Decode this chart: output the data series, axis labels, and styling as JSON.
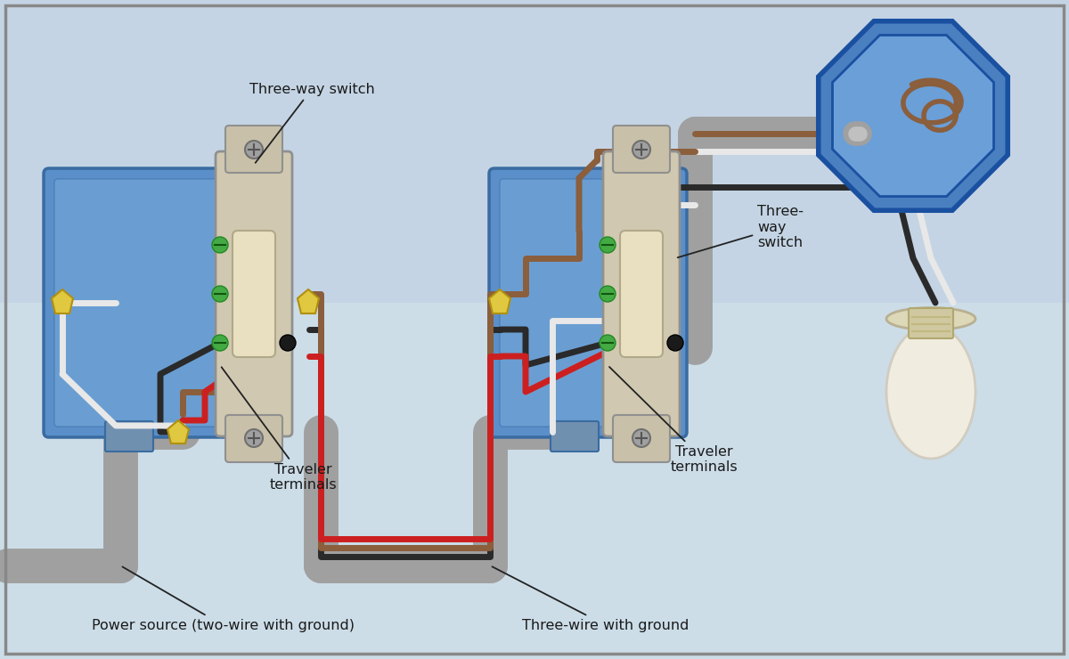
{
  "bg_color_top": "#c8d8ea",
  "bg_color_bot": "#d8e8f4",
  "bg_color": "#cee0ef",
  "border_color": "#888888",
  "box_fill": "#5b8fc9",
  "box_edge": "#3a6ba0",
  "box_inner": "#7aaedc",
  "wire_gray": "#a0a0a0",
  "wire_gray_dark": "#888888",
  "wire_black": "#2a2a2a",
  "wire_white": "#e8e8e8",
  "wire_red": "#cc2020",
  "wire_brown": "#8B5E3C",
  "wire_nut": "#e0c840",
  "wire_nut_edge": "#b09010",
  "switch_body": "#e0d8c0",
  "switch_frame": "#c8c0a8",
  "switch_toggle": "#e8e0c0",
  "switch_metal": "#b8b8b8",
  "switch_screw_green": "#44aa44",
  "oct_fill": "#4a80c0",
  "oct_fill2": "#6a9fd8",
  "oct_edge": "#1a50a0",
  "bulb_glass": "#f0ece0",
  "bulb_cap": "#ddd8b8",
  "bulb_filament": "#c8a060",
  "label_color": "#1a1a1a",
  "ann_arrow_color": "#222222",
  "annotations": {
    "three_way_switch_left": "Three-way switch",
    "three_way_switch_right": "Three-\nway\nswitch",
    "traveler_left": "Traveler\nterminals",
    "traveler_right": "Traveler\nterminals",
    "power_source": "Power source (two-wire with ground)",
    "three_wire": "Three-wire with ground"
  }
}
